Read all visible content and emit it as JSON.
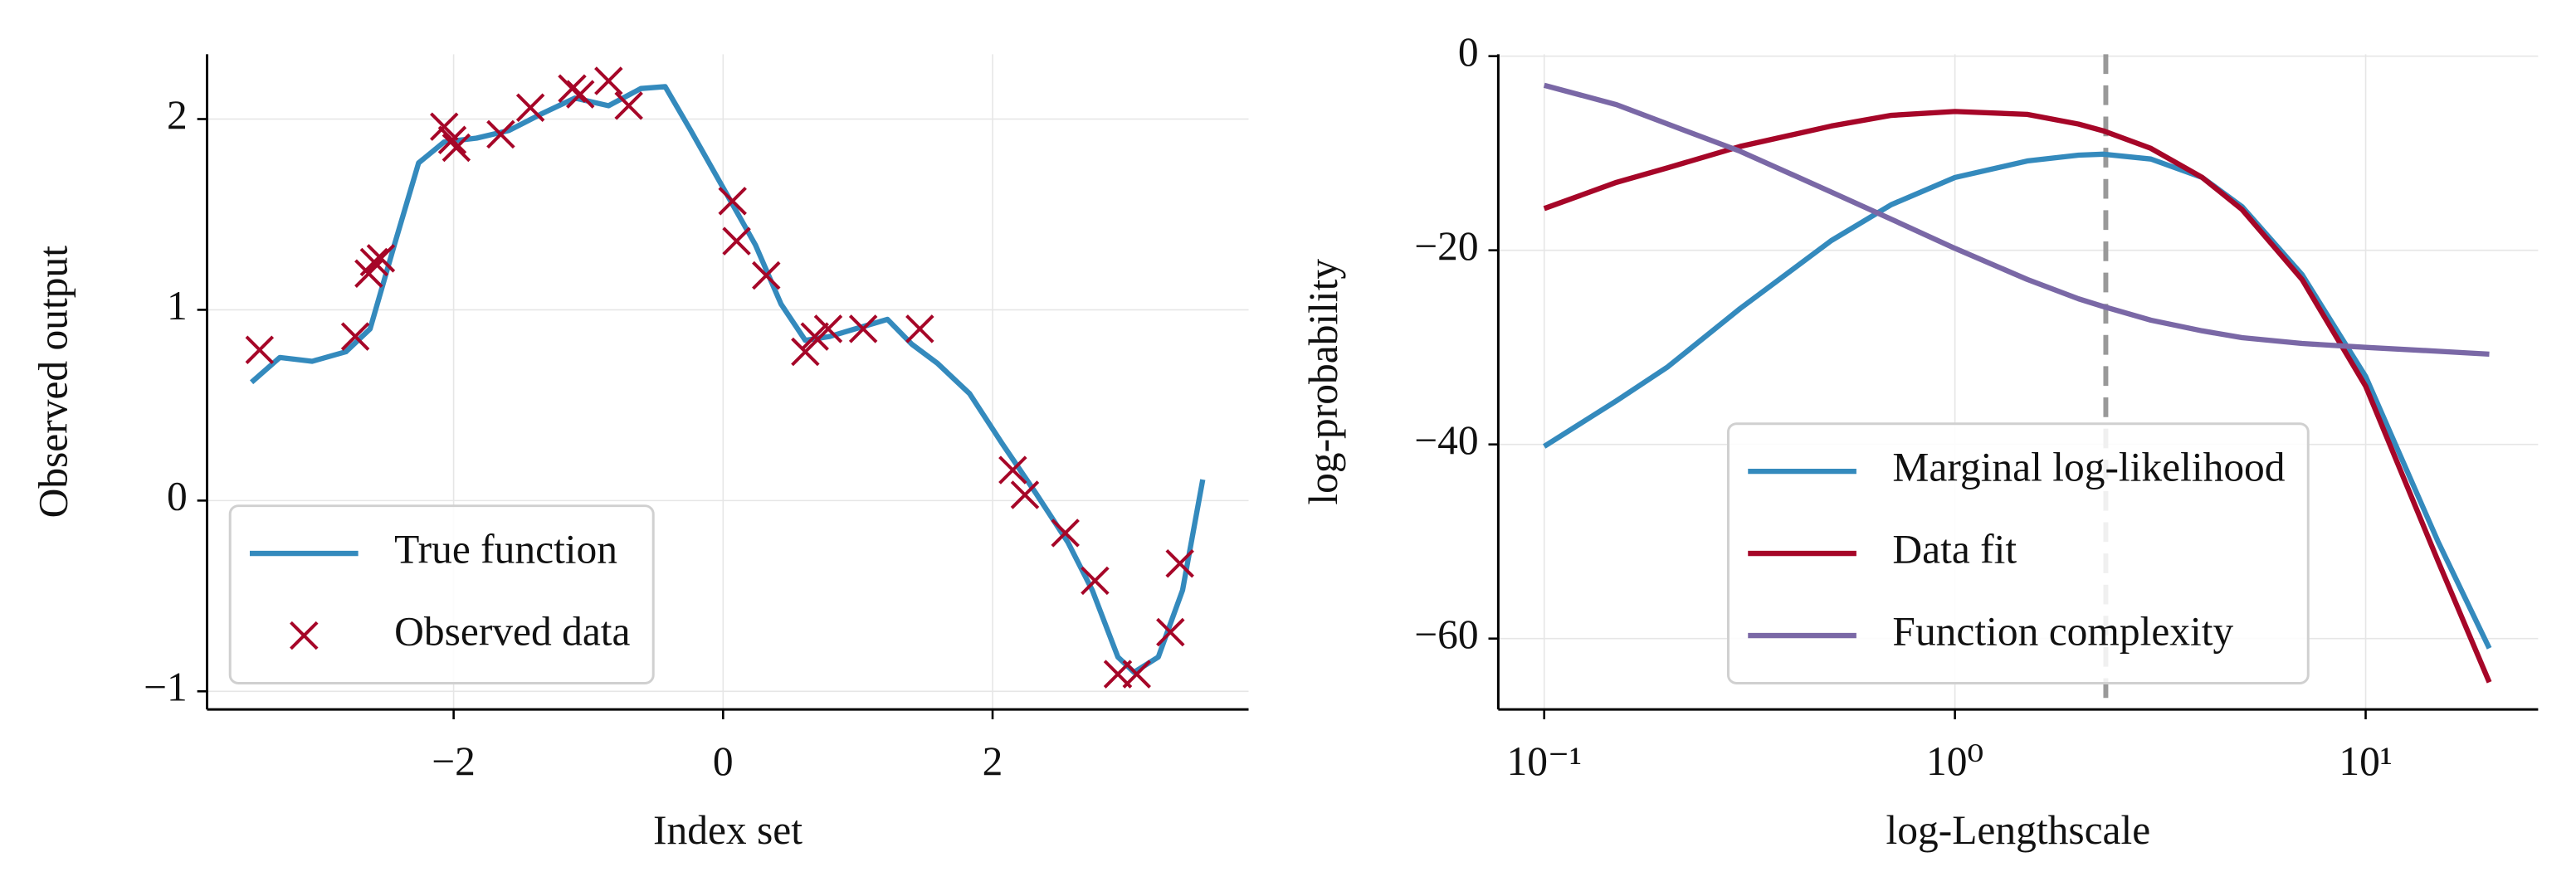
{
  "chart_data": [
    {
      "type": "line",
      "xlabel": "Index set",
      "ylabel": "Observed output",
      "xlim": [
        -3.83,
        3.9
      ],
      "ylim": [
        -1.095,
        2.34
      ],
      "xticks": [
        {
          "value": -2,
          "label": "−2"
        },
        0,
        2
      ],
      "yticks": [
        {
          "value": -1,
          "label": "−1"
        },
        0,
        1,
        2
      ],
      "grid": true,
      "legend": "lower left",
      "series": [
        {
          "name": "True function",
          "color": "#348abd",
          "mode": "line",
          "x": [
            -3.5,
            -3.29,
            -3.05,
            -2.8,
            -2.62,
            -2.44,
            -2.26,
            -2.07,
            -1.83,
            -1.59,
            -1.34,
            -1.1,
            -0.85,
            -0.61,
            -0.43,
            -0.24,
            0,
            0.24,
            0.43,
            0.61,
            0.79,
            0.98,
            1.22,
            1.4,
            1.59,
            1.83,
            2.07,
            2.32,
            2.56,
            2.74,
            2.93,
            3.05,
            3.23,
            3.41,
            3.56
          ],
          "values": [
            0.62,
            0.75,
            0.73,
            0.78,
            0.9,
            1.34,
            1.77,
            1.88,
            1.9,
            1.94,
            2.03,
            2.11,
            2.07,
            2.16,
            2.17,
            1.94,
            1.64,
            1.34,
            1.03,
            0.84,
            0.86,
            0.9,
            0.95,
            0.82,
            0.72,
            0.56,
            0.3,
            0.04,
            -0.22,
            -0.47,
            -0.82,
            -0.9,
            -0.82,
            -0.47,
            0.11
          ]
        },
        {
          "name": "Observed data",
          "color": "#a60628",
          "mode": "markers",
          "x": [
            -3.44,
            -2.73,
            -2.63,
            -2.59,
            -2.54,
            -2.07,
            -2.01,
            -1.98,
            -1.65,
            -1.43,
            -1.12,
            -1.06,
            -0.85,
            -0.7,
            0.07,
            0.1,
            0.32,
            0.61,
            0.68,
            0.78,
            1.04,
            1.46,
            2.15,
            2.24,
            2.54,
            2.76,
            2.93,
            3.07,
            3.32,
            3.39
          ],
          "values": [
            0.79,
            0.86,
            1.19,
            1.25,
            1.27,
            1.96,
            1.89,
            1.85,
            1.92,
            2.06,
            2.16,
            2.13,
            2.2,
            2.07,
            1.57,
            1.36,
            1.18,
            0.78,
            0.86,
            0.9,
            0.9,
            0.9,
            0.16,
            0.03,
            -0.17,
            -0.42,
            -0.91,
            -0.91,
            -0.69,
            -0.33
          ]
        }
      ]
    },
    {
      "type": "line",
      "xlabel": "log-Lengthscale",
      "ylabel": "log-probability",
      "xscale": "log",
      "xlim": [
        0.0773,
        26.3
      ],
      "ylim": [
        -67.3,
        0.2
      ],
      "xticks": [
        {
          "value": 0.1,
          "label": "10⁻¹"
        },
        {
          "value": 1,
          "label": "10⁰"
        },
        {
          "value": 10,
          "label": "10¹"
        }
      ],
      "yticks": [
        {
          "value": -60,
          "label": "−60"
        },
        {
          "value": -40,
          "label": "−40"
        },
        {
          "value": -20,
          "label": "−20"
        },
        0
      ],
      "grid": true,
      "legend": "lower center",
      "vline": {
        "x": 2.33,
        "color": "#999999"
      },
      "series": [
        {
          "name": "Marginal log-likelihood",
          "color": "#348abd",
          "mode": "line",
          "x": [
            0.1,
            0.15,
            0.2,
            0.3,
            0.5,
            0.7,
            1,
            1.5,
            2,
            2.3,
            3,
            4,
            5,
            7,
            10,
            15,
            20
          ],
          "values": [
            -40.2,
            -35.5,
            -32,
            -26,
            -19,
            -15.3,
            -12.5,
            -10.8,
            -10.2,
            -10.1,
            -10.6,
            -12.5,
            -15.5,
            -22.5,
            -33,
            -50,
            -61
          ]
        },
        {
          "name": "Data fit",
          "color": "#a60628",
          "mode": "line",
          "x": [
            0.1,
            0.15,
            0.2,
            0.3,
            0.5,
            0.7,
            1,
            1.5,
            2,
            2.3,
            3,
            4,
            5,
            7,
            10,
            15,
            20
          ],
          "values": [
            -15.7,
            -13,
            -11.5,
            -9.3,
            -7.2,
            -6.1,
            -5.7,
            -6,
            -7,
            -7.7,
            -9.5,
            -12.5,
            -15.8,
            -23,
            -34,
            -52,
            -64.5
          ]
        },
        {
          "name": "Function complexity",
          "color": "#7a68a6",
          "mode": "line",
          "x": [
            0.1,
            0.15,
            0.2,
            0.3,
            0.5,
            0.7,
            1,
            1.5,
            2,
            2.3,
            3,
            4,
            5,
            7,
            10,
            15,
            20
          ],
          "values": [
            -3,
            -5,
            -7,
            -9.8,
            -14,
            -16.8,
            -19.8,
            -23,
            -25,
            -25.8,
            -27.2,
            -28.3,
            -29,
            -29.6,
            -30,
            -30.4,
            -30.7
          ]
        }
      ]
    }
  ]
}
